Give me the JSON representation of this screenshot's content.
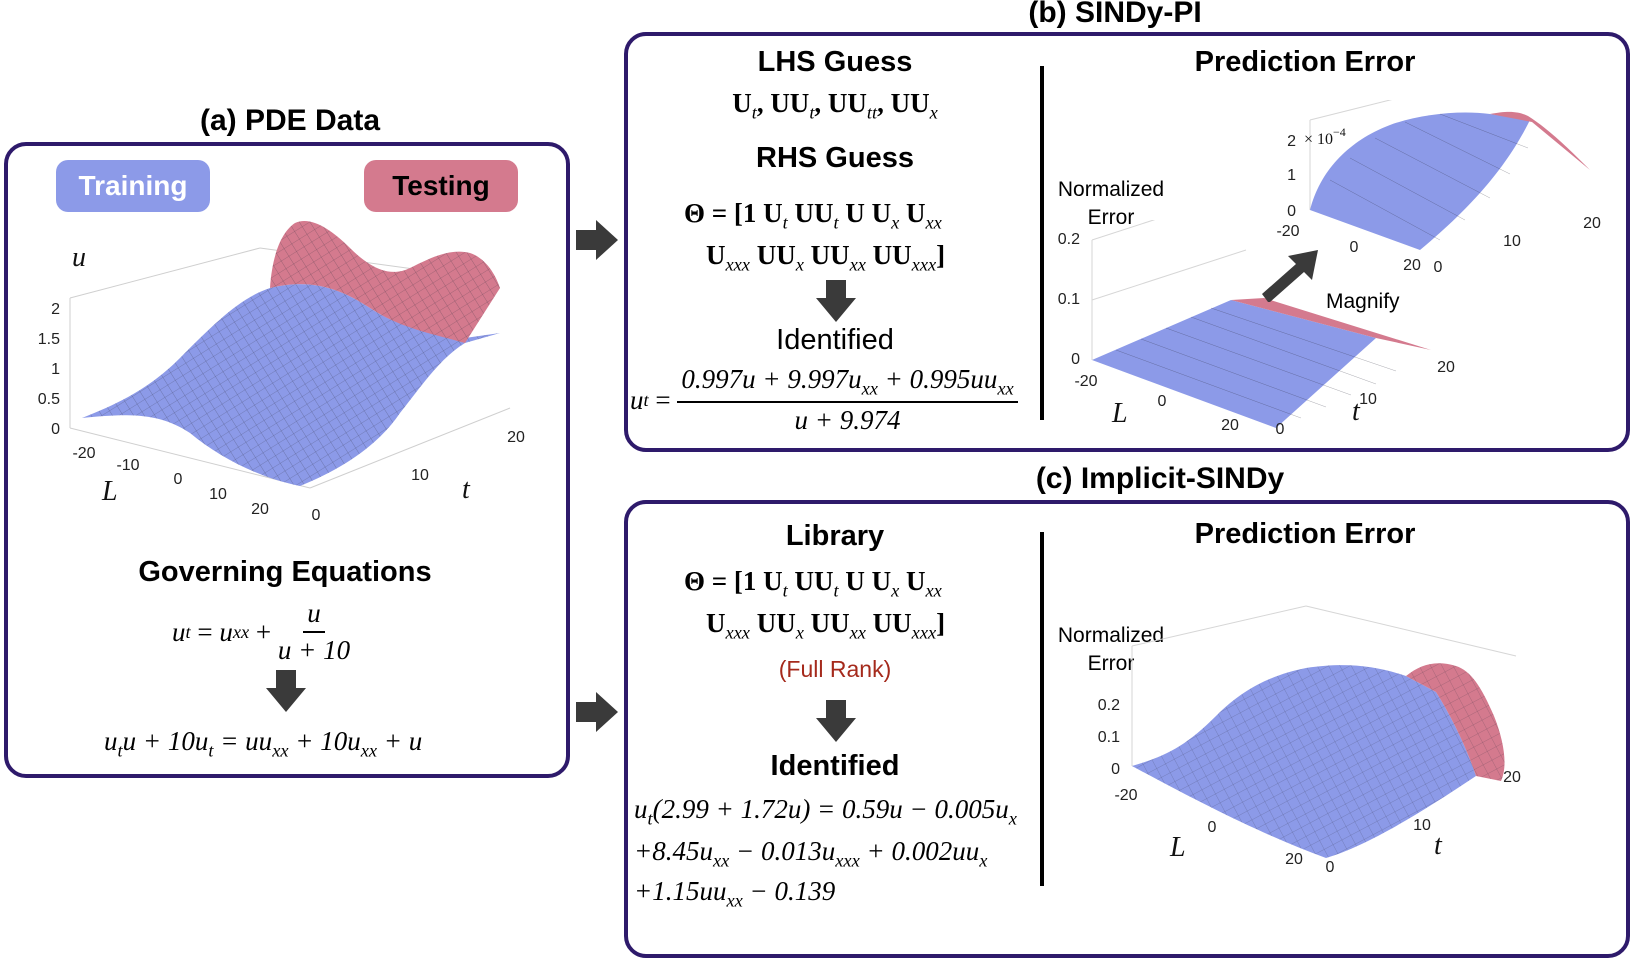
{
  "panel_a": {
    "title": "(a) PDE Data",
    "training_label": "Training",
    "testing_label": "Testing",
    "colors": {
      "training": "#8c9ae8",
      "testing": "#d47a8e",
      "border": "#2e1a6b"
    },
    "plot": {
      "zlabel": "u",
      "xlabel": "L",
      "ylabel": "t",
      "zticks": [
        "2",
        "1.5",
        "1",
        "0.5",
        "0"
      ],
      "xticks": [
        "-20",
        "-10",
        "0",
        "10",
        "20"
      ],
      "yticks": [
        "0",
        "10",
        "20"
      ]
    },
    "governing_title": "Governing Equations",
    "eq1_lhs": "u",
    "eq1_lhs_sub": "t",
    "eq1_eq": " = ",
    "eq1_term": "u",
    "eq1_term_sub": "xx",
    "eq1_plus": " + ",
    "eq1_num": "u",
    "eq1_den": "u + 10",
    "eq2_text": "u",
    "eq2_sub1": "t",
    "eq2_part2": "u + 10u",
    "eq2_sub2": "t",
    "eq2_part3": " = uu",
    "eq2_sub3": "xx",
    "eq2_part4": " + 10u",
    "eq2_sub4": "xx",
    "eq2_part5": " + u"
  },
  "panel_b": {
    "title": "(b) SINDy-PI",
    "lhs_title": "LHS Guess",
    "lhs_terms": [
      "U",
      "t",
      ", UU",
      "t",
      ", UU",
      "tt",
      ", UU",
      "x"
    ],
    "rhs_title": "RHS Guess",
    "theta_line1": [
      "Θ = [1 U",
      "t",
      " UU",
      "t",
      " U U",
      "x",
      " U",
      "xx"
    ],
    "theta_line2": [
      "U",
      "xxx",
      " UU",
      "x",
      " UU",
      "xx",
      " UU",
      "xxx",
      "]"
    ],
    "identified_title": "Identified",
    "id_lhs": "u",
    "id_lhs_sub": "t",
    "id_num": [
      "0.997u + 9.997u",
      "xx",
      " + 0.995uu",
      "xx"
    ],
    "id_den": "u + 9.974",
    "pe_title": "Prediction Error",
    "normalized_error": [
      "Normalized",
      "Error"
    ],
    "magnify": "Magnify",
    "main_plot": {
      "zticks": [
        "0.2",
        "0.1",
        "0"
      ],
      "xticks": [
        "-20",
        "0",
        "20"
      ],
      "yticks": [
        "0",
        "10",
        "20"
      ],
      "xlabel": "L",
      "ylabel": "t"
    },
    "inset_plot": {
      "zticks": [
        "2",
        "1",
        "0"
      ],
      "exponent": "× 10",
      "exponent_power": "−4",
      "xticks": [
        "-20",
        "0",
        "20"
      ],
      "yticks": [
        "0",
        "10",
        "20"
      ]
    }
  },
  "panel_c": {
    "title": "(c) Implicit-SINDy",
    "library_title": "Library",
    "theta_line1": [
      "Θ = [1 U",
      "t",
      " UU",
      "t",
      " U U",
      "x",
      " U",
      "xx"
    ],
    "theta_line2": [
      "U",
      "xxx",
      " UU",
      "x",
      " UU",
      "xx",
      " UU",
      "xxx",
      "]"
    ],
    "full_rank": "(Full Rank)",
    "full_rank_color": "#a52a1c",
    "identified_title": "Identified",
    "id_line1": [
      "u",
      "t",
      "(2.99 + 1.72u) = 0.59u − 0.005u",
      "x"
    ],
    "id_line2": [
      "+8.45u",
      "xx",
      " − 0.013u",
      "xxx",
      " + 0.002uu",
      "x"
    ],
    "id_line3": [
      "+1.15uu",
      "xx",
      " − 0.139"
    ],
    "pe_title": "Prediction Error",
    "normalized_error": [
      "Normalized",
      "Error"
    ],
    "plot": {
      "zticks": [
        "0.2",
        "0.1",
        "0"
      ],
      "xticks": [
        "-20",
        "0",
        "20"
      ],
      "yticks": [
        "0",
        "10",
        "20"
      ],
      "xlabel": "L",
      "ylabel": "t"
    }
  }
}
